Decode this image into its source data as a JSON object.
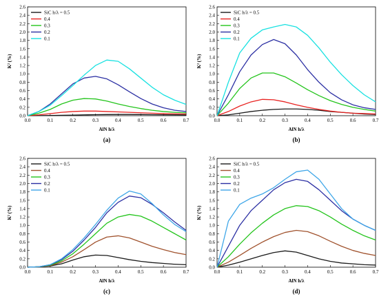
{
  "figure": {
    "panel_captions": [
      "(a)",
      "(b)",
      "(c)",
      "(d)"
    ]
  },
  "chart_data": [
    {
      "type": "line",
      "caption": "(a)",
      "xlabel": "AlN h/λ",
      "ylabel": "K² (%)",
      "xlim": [
        0.0,
        0.7
      ],
      "ylim": [
        0.0,
        2.6
      ],
      "x_ticks": [
        "0.0",
        "0.1",
        "0.2",
        "0.3",
        "0.4",
        "0.5",
        "0.6",
        "0.7"
      ],
      "y_ticks": [
        "0.0",
        "0.2",
        "0.4",
        "0.6",
        "0.8",
        "1.0",
        "1.2",
        "1.4",
        "1.6",
        "1.8",
        "2.0",
        "2.2",
        "2.4",
        "2.6"
      ],
      "grid": false,
      "legend": "top-left",
      "series": [
        {
          "name": "SiC h/λ = 0.5",
          "color": "#1a1a1a",
          "x": [
            0,
            0.05,
            0.1,
            0.15,
            0.2,
            0.25,
            0.3,
            0.35,
            0.4,
            0.45,
            0.5,
            0.55,
            0.6,
            0.65,
            0.7
          ],
          "y": [
            0,
            0.002,
            0.005,
            0.01,
            0.015,
            0.02,
            0.025,
            0.028,
            0.03,
            0.03,
            0.028,
            0.025,
            0.022,
            0.02,
            0.018
          ]
        },
        {
          "name": "0.4",
          "color": "#e8211f",
          "x": [
            0,
            0.05,
            0.1,
            0.15,
            0.2,
            0.25,
            0.3,
            0.35,
            0.4,
            0.45,
            0.5,
            0.55,
            0.6,
            0.65,
            0.7
          ],
          "y": [
            0,
            0.02,
            0.05,
            0.08,
            0.1,
            0.11,
            0.11,
            0.1,
            0.09,
            0.08,
            0.07,
            0.06,
            0.05,
            0.045,
            0.04
          ]
        },
        {
          "name": "0.3",
          "color": "#23c41b",
          "x": [
            0,
            0.05,
            0.1,
            0.15,
            0.2,
            0.25,
            0.3,
            0.35,
            0.4,
            0.45,
            0.5,
            0.55,
            0.6,
            0.65,
            0.7
          ],
          "y": [
            0,
            0.06,
            0.15,
            0.28,
            0.37,
            0.41,
            0.4,
            0.35,
            0.28,
            0.22,
            0.17,
            0.13,
            0.1,
            0.08,
            0.07
          ]
        },
        {
          "name": "0.2",
          "color": "#2b2fa3",
          "x": [
            0,
            0.05,
            0.1,
            0.15,
            0.2,
            0.25,
            0.3,
            0.35,
            0.4,
            0.45,
            0.5,
            0.55,
            0.6,
            0.65,
            0.7
          ],
          "y": [
            0,
            0.1,
            0.28,
            0.52,
            0.76,
            0.9,
            0.94,
            0.88,
            0.74,
            0.57,
            0.41,
            0.28,
            0.19,
            0.13,
            0.1
          ]
        },
        {
          "name": "0.1",
          "color": "#18e1e1",
          "x": [
            0,
            0.05,
            0.1,
            0.15,
            0.2,
            0.25,
            0.3,
            0.35,
            0.4,
            0.45,
            0.5,
            0.55,
            0.6,
            0.65,
            0.7
          ],
          "y": [
            0,
            0.1,
            0.25,
            0.48,
            0.72,
            0.97,
            1.2,
            1.33,
            1.3,
            1.12,
            0.9,
            0.68,
            0.5,
            0.37,
            0.27
          ]
        }
      ]
    },
    {
      "type": "line",
      "caption": "(b)",
      "xlabel": "AlN h/λ",
      "ylabel": "K² (%)",
      "xlim": [
        0.0,
        0.7
      ],
      "ylim": [
        0.0,
        2.6
      ],
      "x_ticks": [
        "0.0",
        "0.1",
        "0.2",
        "0.3",
        "0.4",
        "0.5",
        "0.6",
        "0.7"
      ],
      "y_ticks": [
        "0.0",
        "0.2",
        "0.4",
        "0.6",
        "0.8",
        "1.0",
        "1.2",
        "1.4",
        "1.6",
        "1.8",
        "2.0",
        "2.2",
        "2.4",
        "2.6"
      ],
      "grid": false,
      "legend": "top-left",
      "series": [
        {
          "name": "SiC h/λ = 0.5",
          "color": "#1a1a1a",
          "x": [
            0,
            0.05,
            0.1,
            0.15,
            0.2,
            0.25,
            0.3,
            0.35,
            0.4,
            0.45,
            0.5,
            0.55,
            0.6,
            0.65,
            0.7
          ],
          "y": [
            0,
            0.02,
            0.06,
            0.1,
            0.13,
            0.15,
            0.16,
            0.16,
            0.15,
            0.13,
            0.1,
            0.08,
            0.06,
            0.04,
            0.03
          ]
        },
        {
          "name": "0.4",
          "color": "#e8211f",
          "x": [
            0,
            0.05,
            0.1,
            0.15,
            0.2,
            0.25,
            0.3,
            0.35,
            0.4,
            0.45,
            0.5,
            0.55,
            0.6,
            0.65,
            0.7
          ],
          "y": [
            0,
            0.1,
            0.23,
            0.33,
            0.39,
            0.38,
            0.33,
            0.26,
            0.2,
            0.15,
            0.11,
            0.08,
            0.06,
            0.05,
            0.04
          ]
        },
        {
          "name": "0.3",
          "color": "#23c41b",
          "x": [
            0,
            0.05,
            0.1,
            0.15,
            0.2,
            0.25,
            0.3,
            0.35,
            0.4,
            0.45,
            0.5,
            0.55,
            0.6,
            0.65,
            0.7
          ],
          "y": [
            0,
            0.3,
            0.65,
            0.9,
            1.02,
            1.02,
            0.93,
            0.78,
            0.62,
            0.48,
            0.36,
            0.27,
            0.2,
            0.15,
            0.11
          ]
        },
        {
          "name": "0.2",
          "color": "#2b2fa3",
          "x": [
            0,
            0.05,
            0.1,
            0.15,
            0.2,
            0.25,
            0.3,
            0.35,
            0.4,
            0.45,
            0.5,
            0.55,
            0.6,
            0.65,
            0.7
          ],
          "y": [
            0,
            0.5,
            1.05,
            1.45,
            1.7,
            1.82,
            1.72,
            1.45,
            1.1,
            0.8,
            0.55,
            0.38,
            0.26,
            0.19,
            0.15
          ]
        },
        {
          "name": "0.1",
          "color": "#18e1e1",
          "x": [
            0,
            0.05,
            0.1,
            0.15,
            0.2,
            0.25,
            0.3,
            0.35,
            0.4,
            0.45,
            0.5,
            0.55,
            0.6,
            0.65,
            0.7
          ],
          "y": [
            0,
            0.8,
            1.5,
            1.85,
            2.05,
            2.12,
            2.18,
            2.12,
            1.92,
            1.62,
            1.28,
            0.98,
            0.72,
            0.5,
            0.33
          ]
        }
      ]
    },
    {
      "type": "line",
      "caption": "(c)",
      "xlabel": "AlN h/λ",
      "ylabel": "K² (%)",
      "xlim": [
        0.0,
        0.7
      ],
      "ylim": [
        0.0,
        2.6
      ],
      "x_ticks": [
        "0.0",
        "0.1",
        "0.2",
        "0.3",
        "0.4",
        "0.5",
        "0.6",
        "0.7"
      ],
      "y_ticks": [
        "0.0",
        "0.2",
        "0.4",
        "0.6",
        "0.8",
        "1.0",
        "1.2",
        "1.4",
        "1.6",
        "1.8",
        "2.0",
        "2.2",
        "2.4",
        "2.6"
      ],
      "grid": false,
      "legend": "top-left",
      "series": [
        {
          "name": "SiC h/λ = 0.5",
          "color": "#1a1a1a",
          "x": [
            0,
            0.05,
            0.1,
            0.15,
            0.2,
            0.25,
            0.3,
            0.35,
            0.4,
            0.45,
            0.5,
            0.55,
            0.6,
            0.65,
            0.7
          ],
          "y": [
            0,
            0.01,
            0.03,
            0.08,
            0.17,
            0.25,
            0.29,
            0.28,
            0.23,
            0.18,
            0.14,
            0.11,
            0.09,
            0.07,
            0.06
          ]
        },
        {
          "name": "0.4",
          "color": "#a0522d",
          "x": [
            0,
            0.05,
            0.1,
            0.15,
            0.2,
            0.25,
            0.3,
            0.35,
            0.4,
            0.45,
            0.5,
            0.55,
            0.6,
            0.65,
            0.7
          ],
          "y": [
            0,
            0.01,
            0.04,
            0.12,
            0.25,
            0.42,
            0.6,
            0.72,
            0.75,
            0.7,
            0.6,
            0.5,
            0.42,
            0.35,
            0.3
          ]
        },
        {
          "name": "0.3",
          "color": "#23c41b",
          "x": [
            0,
            0.05,
            0.1,
            0.15,
            0.2,
            0.25,
            0.3,
            0.35,
            0.4,
            0.45,
            0.5,
            0.55,
            0.6,
            0.65,
            0.7
          ],
          "y": [
            0,
            0.01,
            0.05,
            0.15,
            0.32,
            0.55,
            0.8,
            1.05,
            1.2,
            1.26,
            1.22,
            1.1,
            0.95,
            0.8,
            0.65
          ]
        },
        {
          "name": "0.2",
          "color": "#2b2fa3",
          "x": [
            0,
            0.05,
            0.1,
            0.15,
            0.2,
            0.25,
            0.3,
            0.35,
            0.4,
            0.45,
            0.5,
            0.55,
            0.6,
            0.65,
            0.7
          ],
          "y": [
            0,
            0.01,
            0.06,
            0.18,
            0.38,
            0.65,
            0.95,
            1.3,
            1.55,
            1.7,
            1.66,
            1.5,
            1.3,
            1.08,
            0.88
          ]
        },
        {
          "name": "0.1",
          "color": "#3ea6e8",
          "x": [
            0,
            0.05,
            0.1,
            0.15,
            0.2,
            0.25,
            0.3,
            0.35,
            0.4,
            0.45,
            0.5,
            0.55,
            0.6,
            0.65,
            0.7
          ],
          "y": [
            0,
            0.01,
            0.06,
            0.2,
            0.42,
            0.7,
            1.02,
            1.36,
            1.65,
            1.82,
            1.75,
            1.52,
            1.25,
            1.02,
            0.85
          ]
        }
      ]
    },
    {
      "type": "line",
      "caption": "(d)",
      "xlabel": "AlN h/λ",
      "ylabel": "K² (%)",
      "xlim": [
        0.0,
        0.7
      ],
      "ylim": [
        0.0,
        2.6
      ],
      "x_ticks": [
        "0.0",
        "0.1",
        "0.2",
        "0.3",
        "0.4",
        "0.5",
        "0.6",
        "0.7"
      ],
      "y_ticks": [
        "0.0",
        "0.2",
        "0.4",
        "0.6",
        "0.8",
        "1.0",
        "1.2",
        "1.4",
        "1.6",
        "1.8",
        "2.0",
        "2.2",
        "2.4",
        "2.6"
      ],
      "grid": false,
      "legend": "top-left",
      "series": [
        {
          "name": "SiC h/λ = 0.5",
          "color": "#1a1a1a",
          "x": [
            0,
            0.05,
            0.1,
            0.15,
            0.2,
            0.25,
            0.3,
            0.35,
            0.4,
            0.45,
            0.5,
            0.55,
            0.6,
            0.65,
            0.7
          ],
          "y": [
            0,
            0.05,
            0.12,
            0.2,
            0.28,
            0.35,
            0.39,
            0.36,
            0.28,
            0.2,
            0.14,
            0.1,
            0.08,
            0.06,
            0.05
          ]
        },
        {
          "name": "0.4",
          "color": "#a0522d",
          "x": [
            0,
            0.05,
            0.1,
            0.15,
            0.2,
            0.25,
            0.3,
            0.35,
            0.4,
            0.45,
            0.5,
            0.55,
            0.6,
            0.65,
            0.7
          ],
          "y": [
            0,
            0.12,
            0.28,
            0.45,
            0.6,
            0.73,
            0.83,
            0.88,
            0.85,
            0.75,
            0.62,
            0.5,
            0.4,
            0.33,
            0.28
          ]
        },
        {
          "name": "0.3",
          "color": "#23c41b",
          "x": [
            0,
            0.05,
            0.1,
            0.15,
            0.2,
            0.25,
            0.3,
            0.35,
            0.4,
            0.45,
            0.5,
            0.55,
            0.6,
            0.65,
            0.7
          ],
          "y": [
            0,
            0.25,
            0.55,
            0.82,
            1.05,
            1.25,
            1.4,
            1.47,
            1.45,
            1.35,
            1.2,
            1.03,
            0.88,
            0.75,
            0.65
          ]
        },
        {
          "name": "0.2",
          "color": "#2b2fa3",
          "x": [
            0,
            0.05,
            0.1,
            0.15,
            0.2,
            0.25,
            0.3,
            0.35,
            0.4,
            0.45,
            0.5,
            0.55,
            0.6,
            0.65,
            0.7
          ],
          "y": [
            0,
            0.5,
            1.0,
            1.35,
            1.6,
            1.85,
            2.02,
            2.1,
            2.05,
            1.85,
            1.6,
            1.35,
            1.15,
            1.0,
            0.88
          ]
        },
        {
          "name": "0.1",
          "color": "#3ea6e8",
          "x": [
            0,
            0.05,
            0.1,
            0.15,
            0.2,
            0.25,
            0.3,
            0.35,
            0.4,
            0.45,
            0.5,
            0.55,
            0.6,
            0.65,
            0.7
          ],
          "y": [
            0,
            1.1,
            1.5,
            1.65,
            1.75,
            1.9,
            2.1,
            2.28,
            2.32,
            2.1,
            1.75,
            1.4,
            1.15,
            1.0,
            0.88
          ]
        }
      ]
    }
  ]
}
